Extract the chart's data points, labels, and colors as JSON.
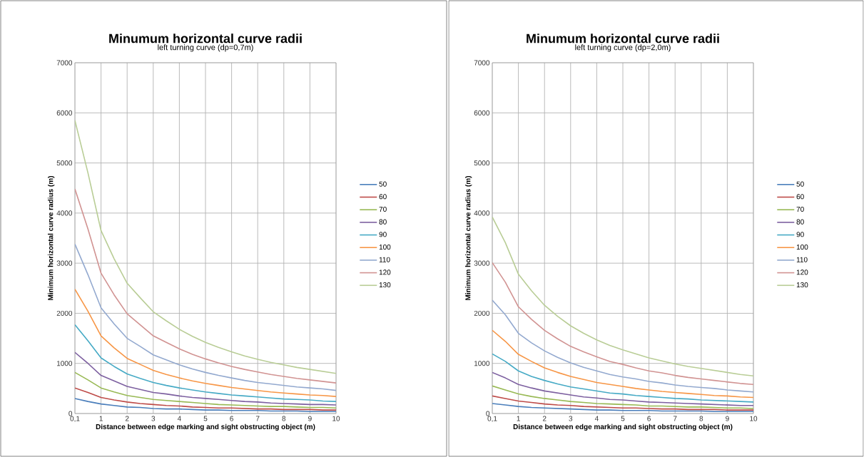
{
  "chart_data": [
    {
      "type": "line",
      "title": "Minumum horizontal curve radii",
      "subtitle": "left turning curve (dp=0,7m)",
      "xlabel": "Distance between edge marking and sight obstructing object (m)",
      "ylabel": "Minimum horizontal curve radius (m)",
      "categories": [
        "0,1",
        null,
        "1",
        null,
        "2",
        null,
        "3",
        null,
        "4",
        null,
        "5",
        null,
        "6",
        null,
        "7",
        null,
        "8",
        null,
        "9",
        null,
        "10"
      ],
      "ylim": [
        0,
        7000
      ],
      "yticks": [
        0,
        1000,
        2000,
        3000,
        4000,
        5000,
        6000,
        7000
      ],
      "grid": true,
      "legend": "right",
      "marker": "none",
      "line_style": "solid",
      "series": [
        {
          "name": "50",
          "color": "#4a7ebb",
          "values": [
            300,
            240,
            190,
            160,
            130,
            120,
            100,
            90,
            90,
            80,
            70,
            70,
            60,
            60,
            60,
            50,
            50,
            50,
            40,
            40,
            40
          ]
        },
        {
          "name": "60",
          "color": "#be4b48",
          "values": [
            510,
            420,
            320,
            270,
            230,
            200,
            180,
            160,
            150,
            130,
            120,
            110,
            110,
            100,
            90,
            90,
            80,
            80,
            80,
            70,
            70
          ]
        },
        {
          "name": "70",
          "color": "#98b954",
          "values": [
            820,
            670,
            510,
            430,
            360,
            320,
            280,
            260,
            240,
            220,
            200,
            180,
            170,
            160,
            150,
            140,
            140,
            130,
            120,
            120,
            110
          ]
        },
        {
          "name": "80",
          "color": "#7d60a0",
          "values": [
            1220,
            1000,
            760,
            650,
            540,
            480,
            420,
            390,
            350,
            320,
            300,
            280,
            260,
            240,
            230,
            210,
            200,
            190,
            180,
            180,
            170
          ]
        },
        {
          "name": "90",
          "color": "#46aac5",
          "values": [
            1770,
            1450,
            1110,
            940,
            790,
            700,
            620,
            560,
            510,
            470,
            430,
            400,
            370,
            350,
            330,
            310,
            290,
            280,
            270,
            250,
            240
          ]
        },
        {
          "name": "100",
          "color": "#f79646",
          "values": [
            2480,
            2040,
            1550,
            1310,
            1100,
            980,
            860,
            780,
            710,
            650,
            600,
            560,
            520,
            490,
            460,
            430,
            410,
            390,
            370,
            360,
            340
          ]
        },
        {
          "name": "110",
          "color": "#93a9cf",
          "values": [
            3380,
            2770,
            2110,
            1790,
            1500,
            1340,
            1170,
            1070,
            970,
            890,
            820,
            760,
            710,
            660,
            620,
            590,
            560,
            530,
            510,
            490,
            460
          ]
        },
        {
          "name": "120",
          "color": "#d19392",
          "values": [
            4480,
            3680,
            2800,
            2370,
            1990,
            1770,
            1550,
            1420,
            1290,
            1180,
            1090,
            1010,
            940,
            880,
            830,
            780,
            740,
            700,
            670,
            640,
            610
          ]
        },
        {
          "name": "130",
          "color": "#b9cd96",
          "values": [
            5850,
            4800,
            3650,
            3090,
            2600,
            2310,
            2030,
            1850,
            1680,
            1540,
            1420,
            1320,
            1230,
            1150,
            1080,
            1020,
            970,
            920,
            880,
            840,
            800
          ]
        }
      ]
    },
    {
      "type": "line",
      "title": "Minumum horizontal curve radii",
      "subtitle": "left turning curve (dp=2,0m)",
      "xlabel": "Distance between edge marking and sight obstructing object (m)",
      "ylabel": "Minimum horizontal curve radius (m)",
      "categories": [
        "0,1",
        null,
        "1",
        null,
        "2",
        null,
        "3",
        null,
        "4",
        null,
        "5",
        null,
        "6",
        null,
        "7",
        null,
        "8",
        null,
        "9",
        null,
        "10"
      ],
      "ylim": [
        0,
        7000
      ],
      "yticks": [
        0,
        1000,
        2000,
        3000,
        4000,
        5000,
        6000,
        7000
      ],
      "grid": true,
      "legend": "right",
      "marker": "none",
      "line_style": "solid",
      "series": [
        {
          "name": "50",
          "color": "#4a7ebb",
          "values": [
            200,
            170,
            140,
            120,
            110,
            100,
            90,
            80,
            70,
            70,
            60,
            60,
            60,
            50,
            50,
            50,
            50,
            40,
            40,
            40,
            40
          ]
        },
        {
          "name": "60",
          "color": "#be4b48",
          "values": [
            350,
            300,
            250,
            220,
            190,
            170,
            160,
            140,
            130,
            120,
            110,
            110,
            100,
            90,
            90,
            80,
            80,
            80,
            70,
            70,
            70
          ]
        },
        {
          "name": "70",
          "color": "#98b954",
          "values": [
            550,
            470,
            390,
            340,
            300,
            270,
            240,
            220,
            200,
            190,
            180,
            170,
            150,
            150,
            140,
            130,
            130,
            120,
            110,
            110,
            100
          ]
        },
        {
          "name": "80",
          "color": "#7d60a0",
          "values": [
            820,
            710,
            580,
            510,
            450,
            410,
            370,
            330,
            310,
            280,
            270,
            250,
            230,
            220,
            210,
            200,
            190,
            180,
            170,
            160,
            160
          ]
        },
        {
          "name": "90",
          "color": "#46aac5",
          "values": [
            1190,
            1040,
            850,
            740,
            660,
            590,
            530,
            490,
            450,
            410,
            390,
            360,
            340,
            320,
            300,
            290,
            270,
            260,
            250,
            240,
            230
          ]
        },
        {
          "name": "100",
          "color": "#f79646",
          "values": [
            1660,
            1440,
            1180,
            1040,
            910,
            820,
            740,
            680,
            620,
            580,
            540,
            500,
            470,
            440,
            420,
            400,
            380,
            360,
            350,
            330,
            320
          ]
        },
        {
          "name": "110",
          "color": "#93a9cf",
          "values": [
            2260,
            1970,
            1600,
            1410,
            1250,
            1120,
            1010,
            920,
            850,
            780,
            730,
            690,
            640,
            610,
            570,
            540,
            520,
            500,
            470,
            450,
            430
          ]
        },
        {
          "name": "120",
          "color": "#d19392",
          "values": [
            3010,
            2620,
            2130,
            1880,
            1660,
            1490,
            1340,
            1230,
            1130,
            1040,
            980,
            910,
            850,
            810,
            760,
            720,
            690,
            660,
            630,
            600,
            580
          ]
        },
        {
          "name": "130",
          "color": "#b9cd96",
          "values": [
            3920,
            3410,
            2780,
            2450,
            2160,
            1940,
            1750,
            1600,
            1470,
            1360,
            1270,
            1190,
            1110,
            1050,
            990,
            940,
            900,
            860,
            820,
            780,
            750
          ]
        }
      ]
    }
  ]
}
